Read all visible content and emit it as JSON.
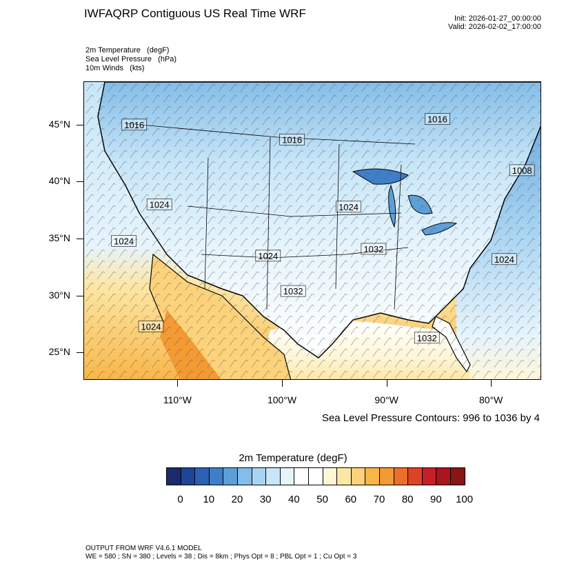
{
  "header": {
    "title": "IWFAQRP Contiguous US Real Time WRF",
    "init": "Init: 2026-01-27_00:00:00",
    "valid": "Valid: 2026-02-02_17:00:00"
  },
  "fields": [
    "2m Temperature   (degF)",
    "Sea Level Pressure   (hPa)",
    "10m Winds   (kts)"
  ],
  "map": {
    "lon_range": [
      -119,
      -75.2
    ],
    "lat_range": [
      22.6,
      48.8
    ],
    "lat_labels": [
      {
        "lat": 45,
        "text": "45°N"
      },
      {
        "lat": 40,
        "text": "40°N"
      },
      {
        "lat": 35,
        "text": "35°N"
      },
      {
        "lat": 30,
        "text": "30°N"
      },
      {
        "lat": 25,
        "text": "25°N"
      }
    ],
    "lon_labels": [
      {
        "lon": -110,
        "text": "110°W"
      },
      {
        "lon": -100,
        "text": "100°W"
      },
      {
        "lon": -90,
        "text": "90°W"
      },
      {
        "lon": -80,
        "text": "80°W"
      }
    ],
    "pressure_labels": [
      {
        "text": "1016",
        "lon": -114.2,
        "lat": 45.0
      },
      {
        "text": "1016",
        "lon": -99.1,
        "lat": 43.7
      },
      {
        "text": "1016",
        "lon": -85.2,
        "lat": 45.5
      },
      {
        "text": "1008",
        "lon": -77.1,
        "lat": 41.0
      },
      {
        "text": "1024",
        "lon": -111.8,
        "lat": 38.0
      },
      {
        "text": "1024",
        "lon": -93.7,
        "lat": 37.8
      },
      {
        "text": "1024",
        "lon": -115.2,
        "lat": 34.8
      },
      {
        "text": "1024",
        "lon": -101.4,
        "lat": 33.5
      },
      {
        "text": "1032",
        "lon": -91.3,
        "lat": 34.1
      },
      {
        "text": "1024",
        "lon": -78.8,
        "lat": 33.2
      },
      {
        "text": "1032",
        "lon": -99.0,
        "lat": 30.4
      },
      {
        "text": "1024",
        "lon": -112.6,
        "lat": 27.3
      },
      {
        "text": "1032",
        "lon": -86.2,
        "lat": 26.3
      }
    ]
  },
  "contour_note": "Sea Level Pressure Contours: 996 to 1036 by 4",
  "colorbar": {
    "title": "2m Temperature  (degF)",
    "colors": [
      "#1a2a6c",
      "#1f4597",
      "#2c60b4",
      "#3f7fc9",
      "#5d9fd9",
      "#84bde8",
      "#a8d4f2",
      "#c8e6f8",
      "#e6f4fc",
      "#ffffff",
      "#ffffff",
      "#fff6d8",
      "#fde7a6",
      "#fcd27a",
      "#f8b648",
      "#f39a33",
      "#ea6f2a",
      "#de4328",
      "#c61f26",
      "#a8151c",
      "#8a1416"
    ],
    "labels": [
      "0",
      "10",
      "20",
      "30",
      "40",
      "50",
      "60",
      "70",
      "80",
      "90",
      "100"
    ]
  },
  "footer": {
    "line1": "OUTPUT FROM WRF V4.6.1 MODEL",
    "line2": "WE = 580 ; SN = 380 ; Levels = 38 ; Dis = 8km ; Phys Opt = 8 ; PBL Opt = 1 ; Cu Opt = 3"
  }
}
